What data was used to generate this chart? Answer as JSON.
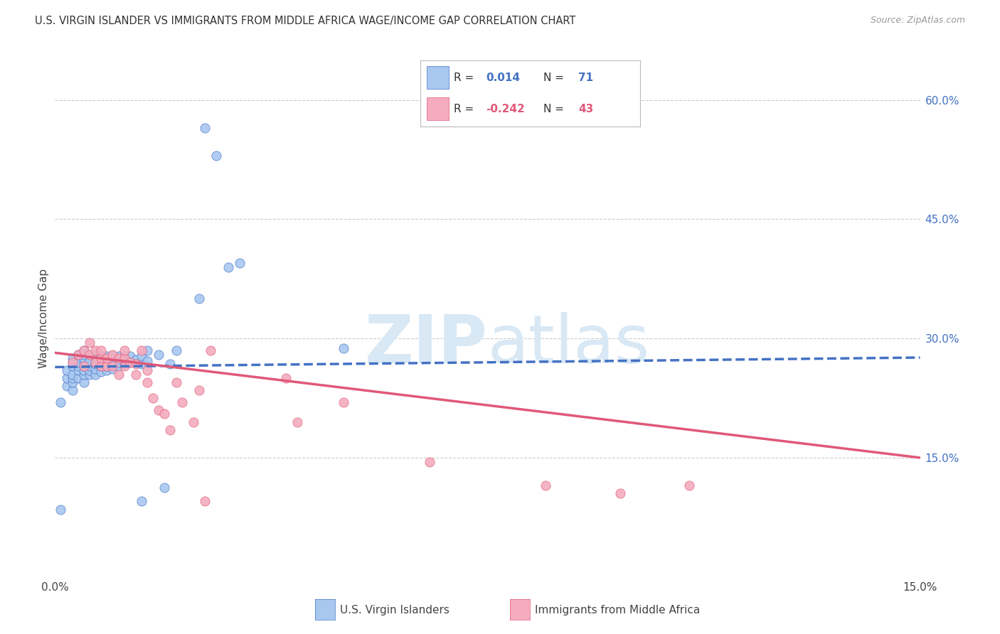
{
  "title": "U.S. VIRGIN ISLANDER VS IMMIGRANTS FROM MIDDLE AFRICA WAGE/INCOME GAP CORRELATION CHART",
  "source": "Source: ZipAtlas.com",
  "ylabel": "Wage/Income Gap",
  "right_yticks": [
    "60.0%",
    "45.0%",
    "30.0%",
    "15.0%"
  ],
  "right_ytick_vals": [
    0.6,
    0.45,
    0.3,
    0.15
  ],
  "color_blue": "#A8C8F0",
  "color_blue_line": "#4472C4",
  "color_pink": "#F4ACBE",
  "color_pink_line": "#E05878",
  "color_blue_text": "#4472C4",
  "color_pink_text": "#E05878",
  "xmin": 0.0,
  "xmax": 0.15,
  "ymin": 0.0,
  "ymax": 0.65,
  "blue_scatter_x": [
    0.001,
    0.001,
    0.002,
    0.002,
    0.002,
    0.003,
    0.003,
    0.003,
    0.003,
    0.003,
    0.003,
    0.003,
    0.004,
    0.004,
    0.004,
    0.004,
    0.004,
    0.005,
    0.005,
    0.005,
    0.005,
    0.005,
    0.005,
    0.005,
    0.005,
    0.006,
    0.006,
    0.006,
    0.006,
    0.007,
    0.007,
    0.007,
    0.007,
    0.007,
    0.007,
    0.008,
    0.008,
    0.008,
    0.008,
    0.009,
    0.009,
    0.009,
    0.009,
    0.01,
    0.01,
    0.01,
    0.01,
    0.011,
    0.011,
    0.011,
    0.012,
    0.012,
    0.012,
    0.013,
    0.013,
    0.014,
    0.015,
    0.015,
    0.015,
    0.016,
    0.016,
    0.018,
    0.019,
    0.02,
    0.021,
    0.025,
    0.026,
    0.028,
    0.03,
    0.032,
    0.05
  ],
  "blue_scatter_y": [
    0.085,
    0.22,
    0.24,
    0.25,
    0.26,
    0.235,
    0.245,
    0.25,
    0.255,
    0.265,
    0.27,
    0.275,
    0.25,
    0.26,
    0.265,
    0.27,
    0.28,
    0.245,
    0.255,
    0.26,
    0.265,
    0.27,
    0.275,
    0.28,
    0.285,
    0.255,
    0.26,
    0.265,
    0.272,
    0.255,
    0.262,
    0.268,
    0.27,
    0.275,
    0.28,
    0.258,
    0.265,
    0.272,
    0.278,
    0.26,
    0.265,
    0.27,
    0.278,
    0.262,
    0.268,
    0.272,
    0.278,
    0.265,
    0.27,
    0.278,
    0.268,
    0.272,
    0.278,
    0.27,
    0.278,
    0.273,
    0.095,
    0.268,
    0.278,
    0.272,
    0.285,
    0.28,
    0.112,
    0.268,
    0.285,
    0.35,
    0.565,
    0.53,
    0.39,
    0.395,
    0.288
  ],
  "pink_scatter_x": [
    0.003,
    0.004,
    0.005,
    0.005,
    0.006,
    0.006,
    0.007,
    0.007,
    0.008,
    0.008,
    0.008,
    0.009,
    0.009,
    0.01,
    0.01,
    0.011,
    0.011,
    0.012,
    0.012,
    0.012,
    0.013,
    0.014,
    0.014,
    0.015,
    0.016,
    0.016,
    0.017,
    0.018,
    0.019,
    0.02,
    0.021,
    0.022,
    0.024,
    0.025,
    0.026,
    0.027,
    0.04,
    0.042,
    0.05,
    0.065,
    0.085,
    0.098,
    0.11
  ],
  "pink_scatter_y": [
    0.27,
    0.28,
    0.265,
    0.285,
    0.28,
    0.295,
    0.27,
    0.285,
    0.265,
    0.275,
    0.285,
    0.265,
    0.275,
    0.265,
    0.28,
    0.255,
    0.275,
    0.265,
    0.275,
    0.285,
    0.27,
    0.255,
    0.268,
    0.285,
    0.245,
    0.26,
    0.225,
    0.21,
    0.205,
    0.185,
    0.245,
    0.22,
    0.195,
    0.235,
    0.095,
    0.285,
    0.25,
    0.195,
    0.22,
    0.145,
    0.115,
    0.105,
    0.115
  ],
  "blue_line_x": [
    0.0,
    0.15
  ],
  "blue_line_y": [
    0.264,
    0.276
  ],
  "pink_line_x": [
    0.0,
    0.15
  ],
  "pink_line_y": [
    0.282,
    0.15
  ],
  "grid_color": "#CCCCCC",
  "background_color": "#FFFFFF",
  "watermark_zip_color": "#D8E8F5",
  "watermark_atlas_color": "#D8E8F5"
}
